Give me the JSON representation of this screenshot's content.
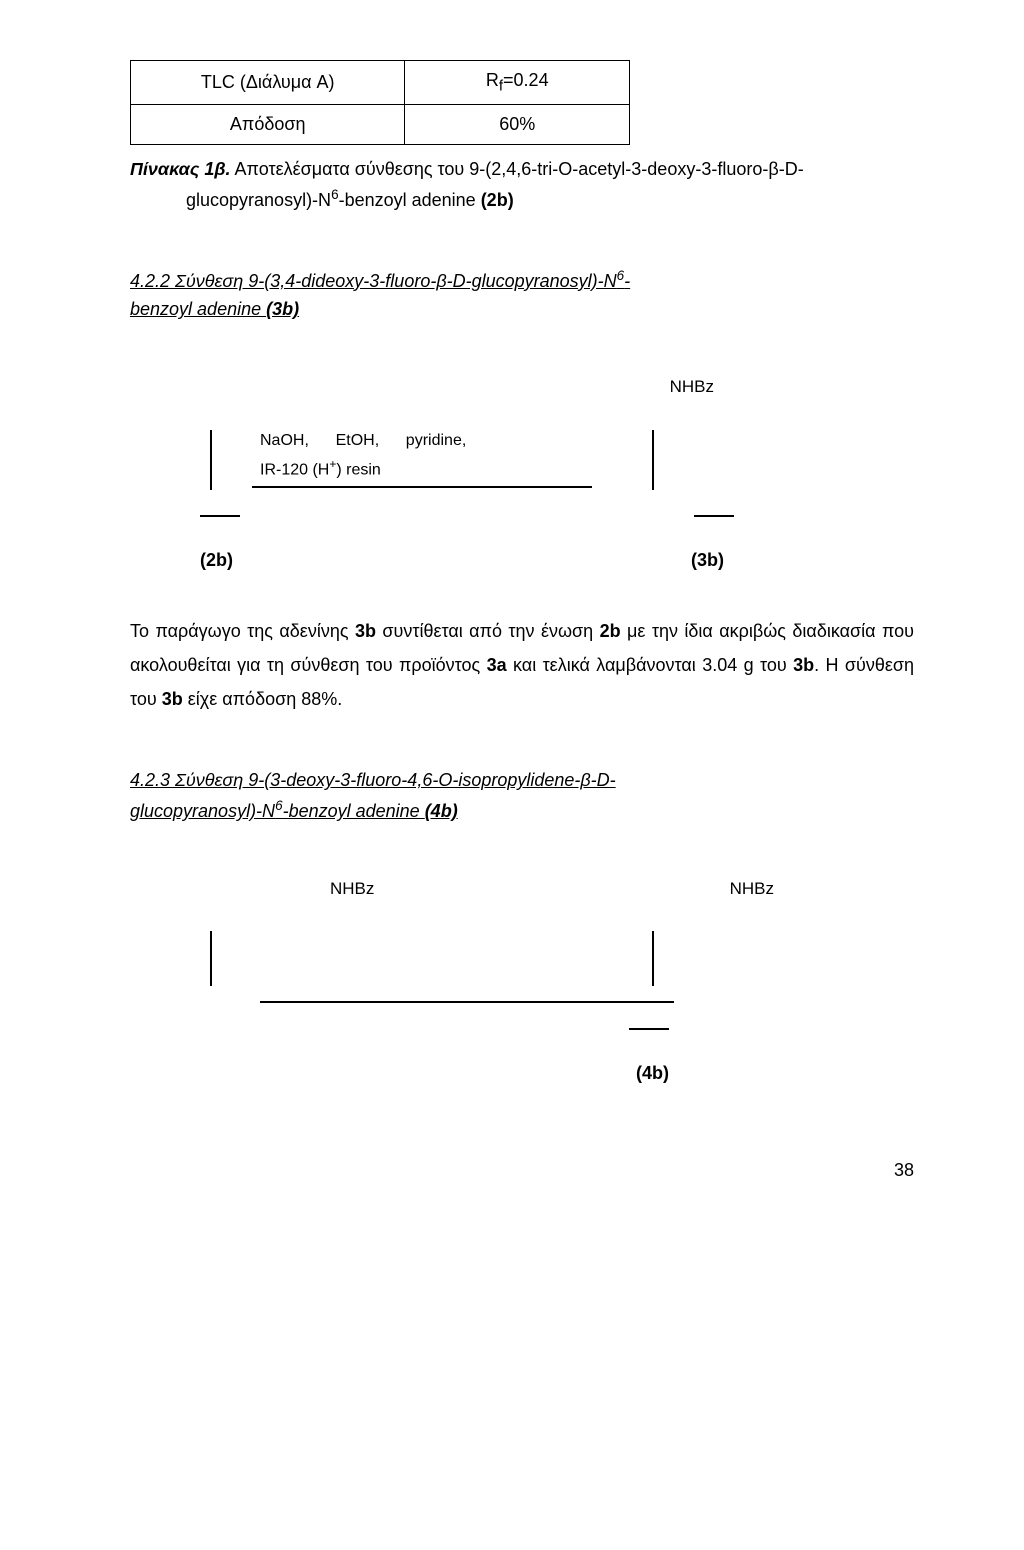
{
  "table": {
    "rows": [
      [
        "TLC (Διάλυμα A)",
        "R_f=0.24"
      ],
      [
        "Απόδοση",
        "60%"
      ]
    ]
  },
  "caption": {
    "label": "Πίνακας 1β.",
    "line1": " Αποτελέσματα σύνθεσης του 9-(2,4,6-tri-O-acetyl-3-deoxy-3-fluoro-β-D-",
    "line2": "glucopyranosyl)-N⁶-benzoyl adenine (2b)"
  },
  "section1": {
    "title_part1": "4.2.2 Σύνθεση 9-(3,4-dideoxy-3-fluoro-β-D-glucopyranosyl)-N⁶-",
    "title_part2": "benzoyl adenine (3b)",
    "nhbz": "NHBz",
    "reagent_line1": "NaOH,        EtOH,        pyridine,",
    "reagent_line2": "IR-120 (H⁺) resin",
    "compound_left": "(2b)",
    "compound_right": "(3b)",
    "body": "Το παράγωγο της αδενίνης 3b συντίθεται από την ένωση 2b με την ίδια ακριβώς διαδικασία που ακολουθείται για τη σύνθεση του προϊόντος 3a και τελικά λαμβάνονται 3.04 g του 3b. Η σύνθεση του 3b είχε απόδοση 88%."
  },
  "section2": {
    "title_part1": "4.2.3 Σύνθεση 9-(3-deoxy-3-fluoro-4,6-O-isopropylidene-β-D-",
    "title_part2": "glucopyranosyl)-N⁶-benzoyl adenine (4b)",
    "nhbz_left": "NHBz",
    "nhbz_right": "NHBz",
    "compound": "(4b)"
  },
  "page_number": "38"
}
